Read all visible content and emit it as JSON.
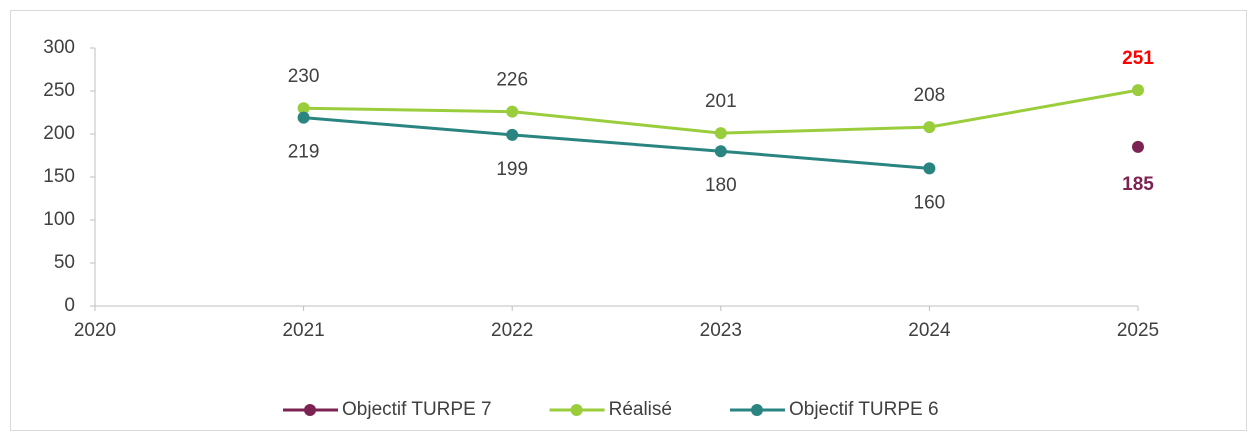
{
  "chart_data": {
    "type": "line",
    "x": [
      2020,
      2021,
      2022,
      2023,
      2024,
      2025
    ],
    "xlim": [
      2020,
      2025
    ],
    "xticks": [
      2020,
      2021,
      2022,
      2023,
      2024,
      2025
    ],
    "ylim": [
      0,
      300
    ],
    "yticks": [
      0,
      50,
      100,
      150,
      200,
      250,
      300
    ],
    "grid": false,
    "legend": "bottom",
    "series": [
      {
        "name": "Objectif TURPE 7",
        "color": "#7b2352",
        "values": [
          null,
          null,
          null,
          null,
          null,
          185
        ],
        "label_position": "below",
        "label_colors": [
          null,
          null,
          null,
          null,
          null,
          "#7b2352"
        ],
        "label_bold": [
          false,
          false,
          false,
          false,
          false,
          true
        ]
      },
      {
        "name": "Réalisé",
        "color": "#9acd3c",
        "values": [
          null,
          230,
          226,
          201,
          208,
          251
        ],
        "label_position": "above",
        "label_colors": [
          null,
          "#404040",
          "#404040",
          "#404040",
          "#404040",
          "#ff0000"
        ],
        "label_bold": [
          false,
          false,
          false,
          false,
          false,
          true
        ]
      },
      {
        "name": "Objectif TURPE 6",
        "color": "#2a8581",
        "values": [
          null,
          219,
          199,
          180,
          160,
          null
        ],
        "label_position": "below",
        "label_colors": [
          null,
          "#404040",
          "#404040",
          "#404040",
          "#404040",
          null
        ],
        "label_bold": [
          false,
          false,
          false,
          false,
          false,
          false
        ]
      }
    ]
  }
}
